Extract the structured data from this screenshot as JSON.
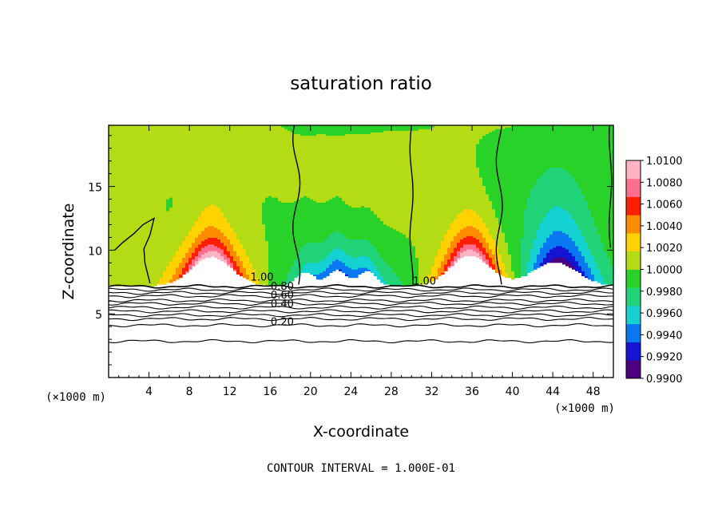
{
  "chart_data": {
    "type": "heatmap",
    "title": "saturation ratio",
    "xlabel": "X-coordinate",
    "ylabel": "Z-coordinate",
    "x_unit": "(×1000 m)",
    "y_unit": "(×1000 m)",
    "xlim": [
      0,
      50
    ],
    "ylim": [
      0,
      19.8
    ],
    "x_ticks": [
      4,
      8,
      12,
      16,
      20,
      24,
      28,
      32,
      36,
      40,
      44,
      48
    ],
    "y_ticks": [
      5,
      10,
      15
    ],
    "x_tick_labels": [
      "4",
      "8",
      "12",
      "16",
      "20",
      "24",
      "28",
      "32",
      "36",
      "40",
      "44",
      "48"
    ],
    "y_tick_labels": [
      "5",
      "10",
      "15"
    ],
    "footnote": "CONTOUR INTERVAL = 1.000E-01",
    "colorbar": {
      "min": 0.99,
      "max": 1.01,
      "labels": [
        "1.0100",
        "1.0080",
        "1.0060",
        "1.0040",
        "1.0020",
        "1.0000",
        "0.9980",
        "0.9960",
        "0.9940",
        "0.9920",
        "0.9900"
      ],
      "colors": [
        "#4b0082",
        "#1414d2",
        "#0a78f0",
        "#14d2d2",
        "#20d278",
        "#28d228",
        "#b4dc14",
        "#ffd200",
        "#ff8c00",
        "#ff1e00",
        "#ff6e8c",
        "#ffb4c3"
      ]
    },
    "contour_labels": [
      {
        "text": "1.00",
        "x": 15.2,
        "y": 7.6
      },
      {
        "text": "0.80",
        "x": 17.2,
        "y": 6.9
      },
      {
        "text": "0.60",
        "x": 17.2,
        "y": 6.2
      },
      {
        "text": "0.40",
        "x": 17.2,
        "y": 5.5
      },
      {
        "text": "0.20",
        "x": 17.2,
        "y": 4.1
      },
      {
        "text": "1.00",
        "x": 31.3,
        "y": 7.3
      }
    ],
    "contour_levels_below": [
      7.15,
      6.9,
      6.65,
      6.4,
      6.05,
      5.8,
      5.5,
      5.2,
      4.9,
      4.6,
      4.1,
      2.85
    ],
    "dry_layer_top": 7.2,
    "anomalies": [
      {
        "x": 10.2,
        "peak": 0.01,
        "note": "supersaturated over first ridge"
      },
      {
        "x": 35.8,
        "peak": 0.01,
        "note": "supersaturated over second ridge"
      },
      {
        "x": 23,
        "peak": -0.006,
        "note": "subsaturated lee zone"
      },
      {
        "x": 45,
        "peak": -0.009,
        "note": "subsaturated lee zone"
      }
    ]
  }
}
